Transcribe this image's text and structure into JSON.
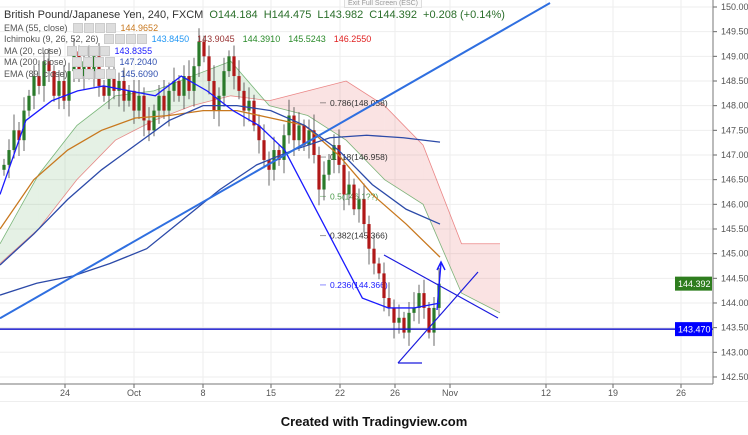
{
  "header": {
    "symbol": "British Pound/Japanese Yen, 240, FXCM",
    "open": "O144.184",
    "high": "H144.475",
    "low": "L143.982",
    "close": "C144.392",
    "change": "+0.208 (+0.14%)"
  },
  "indicators": [
    {
      "label": "EMA (55, close)",
      "values": [
        "144.9652"
      ],
      "colors": [
        "#c8781e"
      ]
    },
    {
      "label": "Ichimoku (9, 26, 52, 26)",
      "values": [
        "143.8450",
        "143.9045",
        "144.3910",
        "145.5243",
        "146.2550"
      ],
      "colors": [
        "#2196f3",
        "#993333",
        "#2a8a2a",
        "#2a8a2a",
        "#e02020"
      ]
    },
    {
      "label": "MA (20, close)",
      "values": [
        "143.8355"
      ],
      "colors": [
        "#1a1aff"
      ]
    },
    {
      "label": "MA (200, close)",
      "values": [
        "147.2040"
      ],
      "colors": [
        "#3050b0"
      ]
    },
    {
      "label": "EMA (89, close)",
      "values": [
        "145.6090"
      ],
      "colors": [
        "#3050b0"
      ]
    }
  ],
  "tooltip": "Exit Full Screen (ESC)",
  "footer": "Created with Tradingview.com",
  "chart_data": {
    "type": "candlestick",
    "yaxis": {
      "min": 142.5,
      "max": 150.0,
      "ticks": [
        "150.000",
        "149.500",
        "149.000",
        "148.500",
        "148.000",
        "147.500",
        "147.000",
        "146.500",
        "146.000",
        "145.500",
        "145.000",
        "144.500",
        "144.000",
        "143.500",
        "143.000",
        "142.500"
      ],
      "grid": true,
      "position": "right"
    },
    "xaxis": {
      "ticks": [
        "24",
        "Oct",
        "8",
        "15",
        "22",
        "26",
        "Nov",
        "12",
        "19",
        "26"
      ],
      "grid": true
    },
    "candles": {
      "closes": [
        146.8,
        147.1,
        147.5,
        147.3,
        147.9,
        148.2,
        148.6,
        148.4,
        148.9,
        148.7,
        148.2,
        148.5,
        148.1,
        148.7,
        149.1,
        148.6,
        148.9,
        148.7,
        149.0,
        148.4,
        148.2,
        148.6,
        148.3,
        148.5,
        148.1,
        148.3,
        147.9,
        148.2,
        147.7,
        147.5,
        147.9,
        148.2,
        147.9,
        148.3,
        148.5,
        148.2,
        148.6,
        148.3,
        148.8,
        149.3,
        149.0,
        148.5,
        147.9,
        148.2,
        148.7,
        149.0,
        148.6,
        148.3,
        147.9,
        148.1,
        147.6,
        147.3,
        146.9,
        146.7,
        147.1,
        146.9,
        147.4,
        147.8,
        147.3,
        147.6,
        147.2,
        147.5,
        147.0,
        146.3,
        146.6,
        146.9,
        147.2,
        146.8,
        146.2,
        146.4,
        145.9,
        146.1,
        145.6,
        145.1,
        144.8,
        144.6,
        144.1,
        143.9,
        143.6,
        143.7,
        143.4,
        143.8,
        143.9,
        144.2,
        143.9,
        143.4,
        143.9,
        144.392
      ],
      "up_color": "#2a7a2a",
      "down_color": "#b01818"
    },
    "series": [
      {
        "name": "EMA (55, close)",
        "color": "#c8781e",
        "values": [
          145.5,
          146.5,
          147.1,
          147.5,
          147.75,
          147.8,
          147.9,
          147.9,
          147.75,
          147.6,
          147.0,
          146.2,
          145.6,
          144.93
        ]
      },
      {
        "name": "EMA (89, close)",
        "color": "#2c4aa8",
        "values": [
          144.77,
          145.4,
          146.1,
          146.7,
          147.2,
          147.7,
          148.0,
          148.0,
          147.9,
          147.6,
          147.1,
          146.4,
          145.9,
          145.6
        ]
      },
      {
        "name": "MA (200, close)",
        "color": "#2c4aa8",
        "values": [
          144.16,
          144.4,
          144.55,
          144.8,
          145.1,
          145.7,
          146.3,
          146.8,
          147.1,
          147.35,
          147.4,
          147.35,
          147.26
        ]
      },
      {
        "name": "MA (20, close)",
        "color": "#1a1aff",
        "values": [
          146.2,
          147.7,
          148.1,
          148.3,
          148.4,
          148.3,
          148.2,
          148.6,
          148.3,
          147.9,
          147.6,
          147.1,
          146.1,
          145.1,
          144.1,
          143.9,
          143.9,
          144.0
        ]
      }
    ],
    "ichimoku_cloud": {
      "span_a": [
        145.2,
        146.6,
        147.6,
        148.2,
        148.3,
        148.6,
        148.9,
        148.0,
        147.8,
        147.3,
        146.5,
        146.0,
        144.2,
        143.8
      ],
      "span_b": [
        144.8,
        145.5,
        146.5,
        147.3,
        147.7,
        148.0,
        148.2,
        148.1,
        148.3,
        148.5,
        148.0,
        147.2,
        145.2,
        145.2
      ],
      "bull_color": "#2a8a2a",
      "bear_color": "#e04040"
    },
    "fibonacci": [
      {
        "label": "0.786(148.058)",
        "price": 148.058,
        "color": "#333"
      },
      {
        "label": "0.618(146.958)",
        "price": 146.958,
        "color": "#333"
      },
      {
        "label": "0.5(146.1??)",
        "price": 146.16,
        "color": "#4a9a4a"
      },
      {
        "label": "0.382(145.366)",
        "price": 145.366,
        "color": "#333"
      },
      {
        "label": "0.236(144.366)",
        "price": 144.366,
        "color": "#1a1aff"
      }
    ],
    "price_labels": [
      {
        "text": "144.392",
        "price": 144.392,
        "color": "#2e7d1e"
      },
      {
        "text": "143.470",
        "price": 143.47,
        "color": "#0000ff"
      }
    ],
    "trendlines": [
      {
        "name": "long-trendline",
        "from": 143.69,
        "to": 150.08,
        "color": "#2f6fe0"
      },
      {
        "name": "support-line",
        "from": 143.47,
        "to": 143.47,
        "color": "#1a1acc"
      }
    ]
  }
}
